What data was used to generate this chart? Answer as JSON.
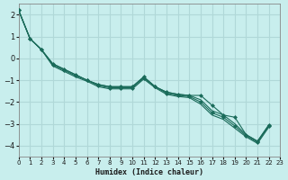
{
  "xlabel": "Humidex (Indice chaleur)",
  "ylabel": "",
  "bg_color": "#c8eeed",
  "grid_color": "#b0d8d8",
  "line_color": "#1a6b5a",
  "marker_color": "#1a6b5a",
  "xlim": [
    0,
    23
  ],
  "ylim": [
    -4.5,
    2.5
  ],
  "yticks": [
    2,
    1,
    0,
    -1,
    -2,
    -3,
    -4
  ],
  "xticks": [
    0,
    1,
    2,
    3,
    4,
    5,
    6,
    7,
    8,
    9,
    10,
    11,
    12,
    13,
    14,
    15,
    16,
    17,
    18,
    19,
    20,
    21,
    22,
    23
  ],
  "series": [
    [
      2.2,
      0.9,
      0.4,
      -0.25,
      -0.5,
      -0.75,
      -1.0,
      -1.2,
      -1.3,
      -1.3,
      -1.3,
      -0.85,
      -1.3,
      -1.55,
      -1.65,
      -1.7,
      -1.7,
      -2.15,
      -2.6,
      -2.7,
      -3.5,
      -3.8,
      -3.05
    ],
    [
      2.2,
      0.9,
      0.4,
      -0.25,
      -0.5,
      -0.75,
      -1.0,
      -1.2,
      -1.3,
      -1.3,
      -1.3,
      -0.85,
      -1.3,
      -1.55,
      -1.65,
      -1.7,
      -1.9,
      -2.4,
      -2.6,
      -3.0,
      -3.5,
      -3.8,
      -3.05
    ],
    [
      2.2,
      0.9,
      0.4,
      -0.3,
      -0.55,
      -0.8,
      -1.0,
      -1.25,
      -1.35,
      -1.35,
      -1.35,
      -0.9,
      -1.3,
      -1.6,
      -1.7,
      -1.75,
      -2.0,
      -2.5,
      -2.7,
      -3.1,
      -3.55,
      -3.85,
      -3.1
    ],
    [
      2.2,
      0.9,
      0.4,
      -0.35,
      -0.6,
      -0.85,
      -1.05,
      -1.3,
      -1.4,
      -1.4,
      -1.4,
      -0.95,
      -1.35,
      -1.65,
      -1.75,
      -1.8,
      -2.1,
      -2.6,
      -2.8,
      -3.2,
      -3.6,
      -3.9,
      -3.15
    ]
  ],
  "series_with_markers": [
    0,
    2
  ],
  "main_series": 0
}
